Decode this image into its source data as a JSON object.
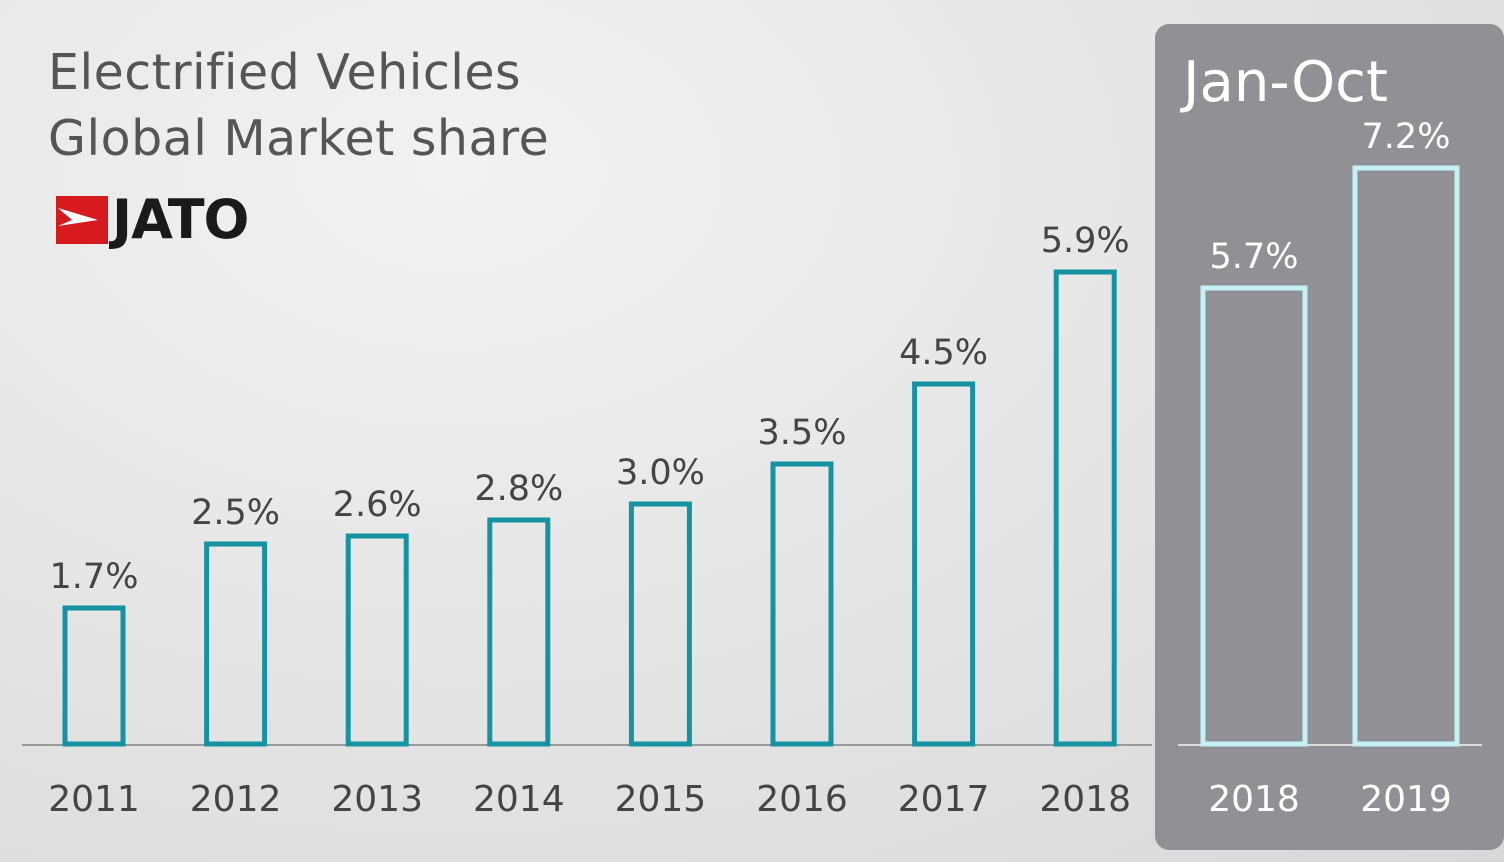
{
  "title": {
    "line1": "Electrified Vehicles",
    "line2": "Global Market share"
  },
  "logo": {
    "text": "JATO",
    "flag_color": "#d71920"
  },
  "panel": {
    "title": "Jan-Oct"
  },
  "colors": {
    "bar_annual": "#1693a3",
    "bar_ytd": "#c4f1f6",
    "label_annual": "#444444",
    "label_ytd": "#ffffff",
    "panel_bg": "#919195",
    "axis": "#9a9a9a"
  },
  "chart_data": {
    "type": "bar",
    "title": "Electrified Vehicles Global Market share",
    "unit": "%",
    "ylim": [
      0,
      8
    ],
    "grid": false,
    "groups": [
      {
        "name": "",
        "categories": [
          "2011",
          "2012",
          "2013",
          "2014",
          "2015",
          "2016",
          "2017",
          "2018"
        ],
        "values": [
          1.7,
          2.5,
          2.6,
          2.8,
          3.0,
          3.5,
          4.5,
          5.9
        ],
        "labels": [
          "1.7%",
          "2.5%",
          "2.6%",
          "2.8%",
          "3.0%",
          "3.5%",
          "4.5%",
          "5.9%"
        ]
      },
      {
        "name": "Jan-Oct",
        "categories": [
          "2018",
          "2019"
        ],
        "values": [
          5.7,
          7.2
        ],
        "labels": [
          "5.7%",
          "7.2%"
        ]
      }
    ]
  }
}
